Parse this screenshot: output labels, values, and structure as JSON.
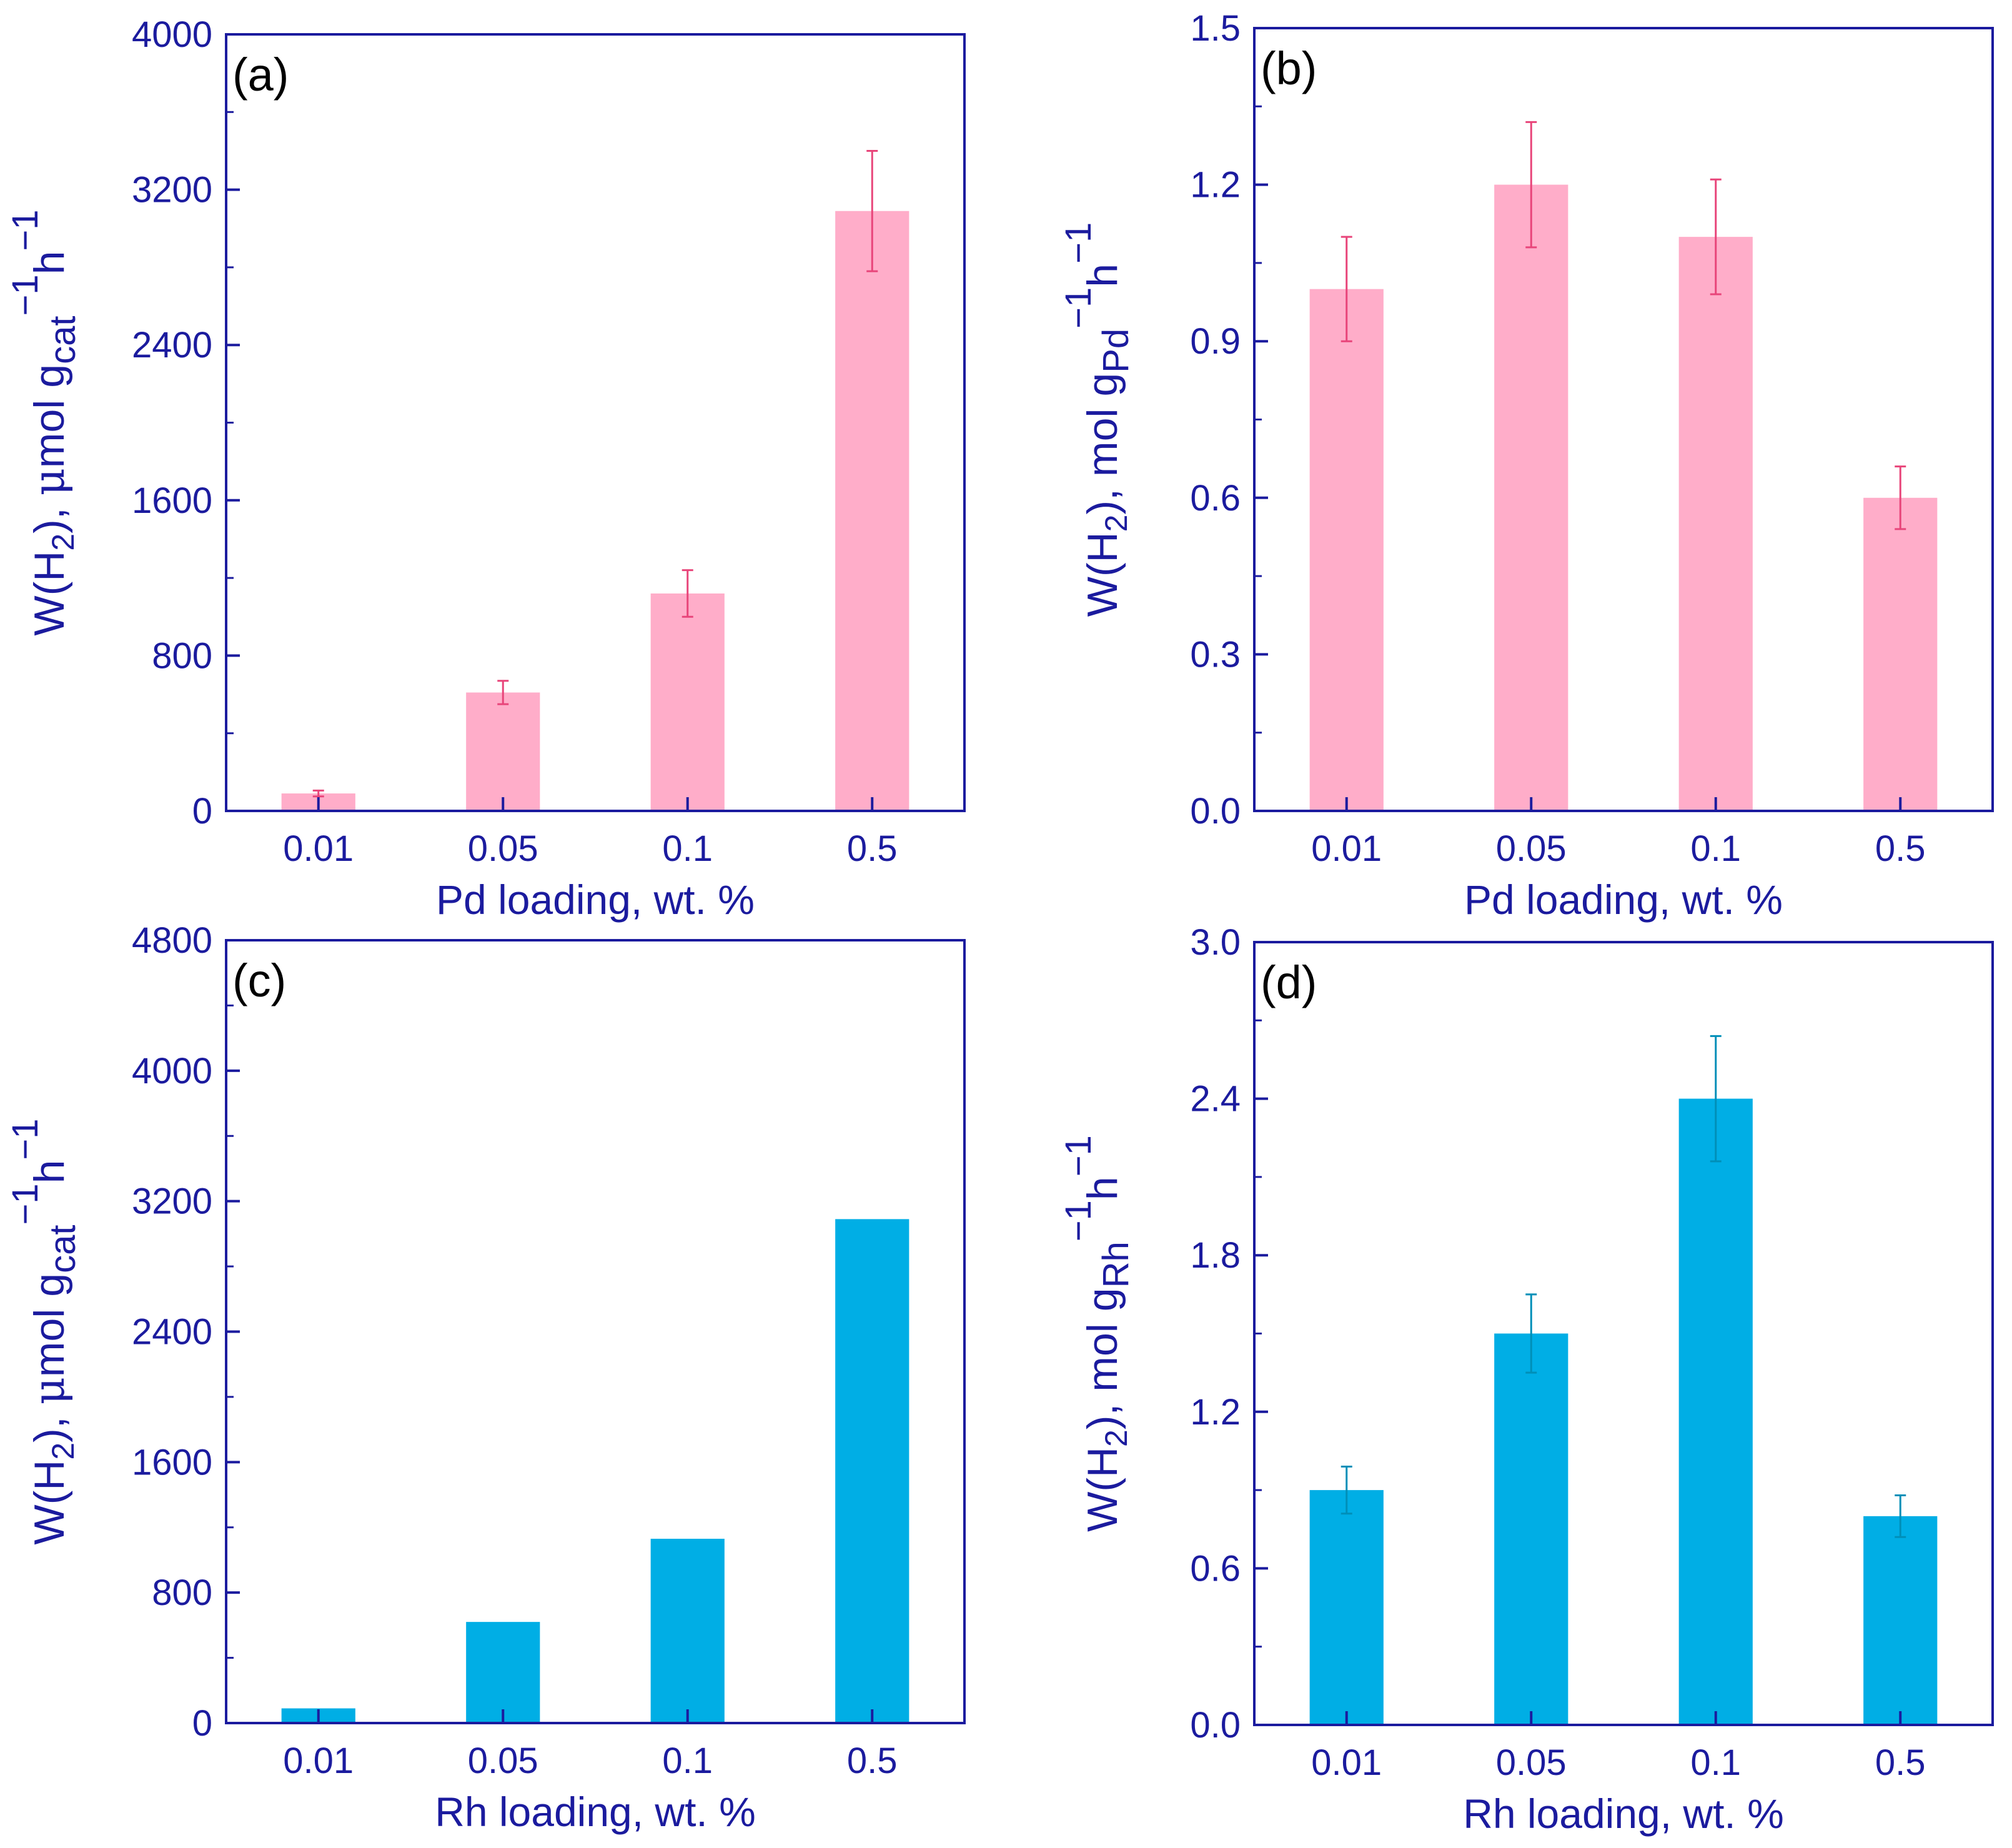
{
  "colors": {
    "axis": "#1b1b9e",
    "pd_fill": "#ffadc9",
    "pd_error": "#e8457a",
    "rh_fill": "#00aee5",
    "rh_error": "#008fb8"
  },
  "chart_data": [
    {
      "id": "a",
      "panel_label": "(a)",
      "type": "bar",
      "color_key": "pd",
      "categories": [
        "0.01",
        "0.05",
        "0.1",
        "0.5"
      ],
      "values": [
        90,
        610,
        1120,
        3090
      ],
      "errors": [
        15,
        60,
        120,
        310
      ],
      "xlabel": "Pd loading, wt. %",
      "ylabel": {
        "prefix": "W(H",
        "sub1": "2",
        "mid": "), ",
        "mu": "μ",
        "unit": "mol g",
        "sub2": "cat",
        "sup1": "−1",
        "h": "h",
        "sup2": "−1"
      },
      "ylim": [
        0,
        4000
      ],
      "yticks": [
        "0",
        "800",
        "1600",
        "2400",
        "3200",
        "4000"
      ]
    },
    {
      "id": "b",
      "panel_label": "(b)",
      "type": "bar",
      "color_key": "pd",
      "categories": [
        "0.01",
        "0.05",
        "0.1",
        "0.5"
      ],
      "values": [
        1.0,
        1.2,
        1.1,
        0.6
      ],
      "errors": [
        0.1,
        0.12,
        0.11,
        0.06
      ],
      "xlabel": "Pd loading, wt. %",
      "ylabel": {
        "prefix": "W(H",
        "sub1": "2",
        "mid": "), ",
        "mu": "",
        "unit": "mol g",
        "sub2": "Pd",
        "sup1": "−1",
        "h": "h",
        "sup2": "−1"
      },
      "ylim": [
        0,
        1.5
      ],
      "yticks": [
        "0.0",
        "0.3",
        "0.6",
        "0.9",
        "1.2",
        "1.5"
      ]
    },
    {
      "id": "c",
      "panel_label": "(c)",
      "type": "bar",
      "color_key": "rh",
      "categories": [
        "0.01",
        "0.05",
        "0.1",
        "0.5"
      ],
      "values": [
        90,
        620,
        1130,
        3090
      ],
      "errors": [
        0,
        0,
        0,
        0
      ],
      "xlabel": "Rh loading, wt. %",
      "ylabel": {
        "prefix": "W(H",
        "sub1": "2",
        "mid": "), ",
        "mu": "μ",
        "unit": "mol g",
        "sub2": "cat",
        "sup1": "−1",
        "h": "h",
        "sup2": "−1"
      },
      "ylim": [
        0,
        4800
      ],
      "yticks": [
        "0",
        "800",
        "1600",
        "2400",
        "3200",
        "4000",
        "4800"
      ]
    },
    {
      "id": "d",
      "panel_label": "(d)",
      "type": "bar",
      "color_key": "rh",
      "categories": [
        "0.01",
        "0.05",
        "0.1",
        "0.5"
      ],
      "values": [
        0.9,
        1.5,
        2.4,
        0.8
      ],
      "errors": [
        0.09,
        0.15,
        0.24,
        0.08
      ],
      "xlabel": "Rh loading, wt. %",
      "ylabel": {
        "prefix": "W(H",
        "sub1": "2",
        "mid": "), ",
        "mu": "",
        "unit": "mol g",
        "sub2": "Rh",
        "sup1": "−1",
        "h": "h",
        "sup2": "−1"
      },
      "ylim": [
        0,
        3.0
      ],
      "yticks": [
        "0.0",
        "0.6",
        "1.2",
        "1.8",
        "2.4",
        "3.0"
      ]
    }
  ]
}
